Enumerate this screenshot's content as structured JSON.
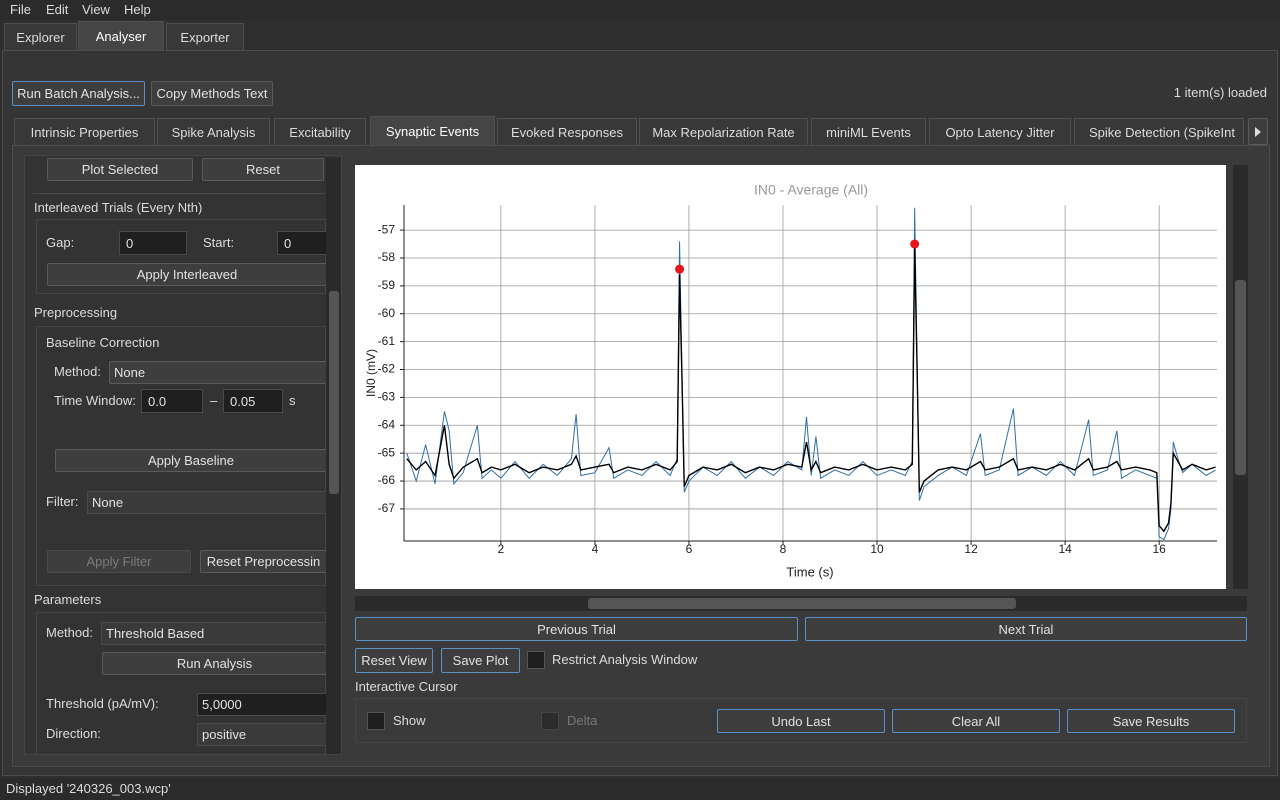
{
  "menu": [
    "File",
    "Edit",
    "View",
    "Help"
  ],
  "main_tabs": [
    "Explorer",
    "Analyser",
    "Exporter"
  ],
  "toolbar": {
    "run_batch": "Run Batch Analysis...",
    "copy_methods": "Copy Methods Text",
    "items_loaded": "1 item(s) loaded"
  },
  "analysis_tabs": [
    "Intrinsic Properties",
    "Spike Analysis",
    "Excitability",
    "Synaptic Events",
    "Evoked Responses",
    "Max Repolarization Rate",
    "miniML Events",
    "Opto Latency Jitter",
    "Spike Detection (SpikeInt"
  ],
  "left_panel": {
    "plot_selected": "Plot Selected",
    "reset": "Reset",
    "interleaved_title": "Interleaved Trials (Every Nth)",
    "gap_label": "Gap:",
    "gap_value": "0",
    "start_label": "Start:",
    "start_value": "0",
    "apply_interleaved": "Apply Interleaved",
    "preprocessing_title": "Preprocessing",
    "baseline_title": "Baseline Correction",
    "method_label": "Method:",
    "method_value": "None",
    "time_window_label": "Time Window:",
    "tw_start": "0.0",
    "tw_dash": "–",
    "tw_end": "0.05",
    "tw_unit": "s",
    "apply_baseline": "Apply Baseline",
    "filter_label": "Filter:",
    "filter_value": "None",
    "apply_filter": "Apply Filter",
    "reset_preprocessing": "Reset Preprocessin",
    "parameters_title": "Parameters",
    "param_method_label": "Method:",
    "param_method_value": "Threshold Based",
    "run_analysis": "Run Analysis",
    "threshold_label": "Threshold (pA/mV):",
    "threshold_value": "5,0000",
    "direction_label": "Direction:",
    "direction_value": "positive"
  },
  "chart_data": {
    "type": "line",
    "title": "IN0 - Average (All)",
    "x_label": "Time (s)",
    "y_label": "IN0 (mV)",
    "xlim": [
      -0.06,
      17.23
    ],
    "ylim": [
      -68.15,
      -56.1
    ],
    "xticks": [
      2,
      4,
      6,
      8,
      10,
      12,
      14,
      16
    ],
    "yticks": [
      -67,
      -66,
      -65,
      -64,
      -63,
      -62,
      -61,
      -60,
      -59,
      -58,
      -57
    ],
    "grid": true,
    "x": [
      0.0,
      0.2,
      0.4,
      0.6,
      0.8,
      0.9,
      1.0,
      1.2,
      1.5,
      1.6,
      1.8,
      2.0,
      2.3,
      2.6,
      2.9,
      3.2,
      3.5,
      3.6,
      3.7,
      4.0,
      4.3,
      4.4,
      4.7,
      5.0,
      5.3,
      5.6,
      5.75,
      5.8,
      5.85,
      5.9,
      6.0,
      6.3,
      6.6,
      6.9,
      7.2,
      7.5,
      7.8,
      8.1,
      8.4,
      8.5,
      8.6,
      8.7,
      8.8,
      9.1,
      9.4,
      9.7,
      10.0,
      10.3,
      10.6,
      10.75,
      10.8,
      10.85,
      10.9,
      11.0,
      11.3,
      11.6,
      11.9,
      12.2,
      12.3,
      12.6,
      12.9,
      13.0,
      13.3,
      13.6,
      13.9,
      14.2,
      14.5,
      14.6,
      14.9,
      15.1,
      15.2,
      15.5,
      15.8,
      15.95,
      16.0,
      16.1,
      16.2,
      16.25,
      16.3,
      16.4,
      16.5,
      16.7,
      17.0,
      17.2
    ],
    "series": [
      {
        "color": "#2f6fa6",
        "values": [
          -65.0,
          -66.0,
          -64.7,
          -66.1,
          -63.5,
          -64.2,
          -66.1,
          -65.7,
          -64.0,
          -65.9,
          -65.6,
          -65.9,
          -65.3,
          -65.9,
          -65.4,
          -65.8,
          -65.2,
          -63.6,
          -65.8,
          -65.7,
          -64.8,
          -65.9,
          -65.6,
          -65.8,
          -65.3,
          -65.8,
          -65.2,
          -57.4,
          -62.0,
          -66.4,
          -66.0,
          -65.5,
          -65.8,
          -65.3,
          -65.9,
          -65.5,
          -65.8,
          -65.3,
          -65.6,
          -63.7,
          -65.8,
          -64.4,
          -65.9,
          -65.6,
          -65.8,
          -65.3,
          -65.8,
          -65.6,
          -65.8,
          -65.3,
          -56.2,
          -61.5,
          -66.7,
          -66.2,
          -65.8,
          -65.5,
          -65.8,
          -64.3,
          -65.8,
          -65.6,
          -63.4,
          -65.8,
          -65.5,
          -65.8,
          -65.3,
          -65.8,
          -63.8,
          -65.8,
          -65.6,
          -64.2,
          -65.9,
          -65.6,
          -65.8,
          -65.9,
          -68.0,
          -68.1,
          -67.7,
          -67.0,
          -64.6,
          -65.2,
          -65.7,
          -65.4,
          -65.8,
          -65.6
        ]
      },
      {
        "color": "#000000",
        "values": [
          -65.2,
          -65.6,
          -65.3,
          -65.8,
          -64.0,
          -65.4,
          -65.9,
          -65.5,
          -65.2,
          -65.7,
          -65.5,
          -65.6,
          -65.4,
          -65.7,
          -65.5,
          -65.6,
          -65.4,
          -65.1,
          -65.6,
          -65.5,
          -65.4,
          -65.7,
          -65.5,
          -65.6,
          -65.4,
          -65.6,
          -65.3,
          -58.6,
          -62.2,
          -66.2,
          -65.8,
          -65.5,
          -65.6,
          -65.4,
          -65.7,
          -65.5,
          -65.6,
          -65.4,
          -65.5,
          -64.6,
          -65.6,
          -65.3,
          -65.7,
          -65.5,
          -65.6,
          -65.4,
          -65.6,
          -65.5,
          -65.6,
          -65.4,
          -57.6,
          -61.8,
          -66.4,
          -66.0,
          -65.6,
          -65.5,
          -65.6,
          -65.3,
          -65.6,
          -65.5,
          -65.2,
          -65.6,
          -65.5,
          -65.6,
          -65.4,
          -65.6,
          -65.2,
          -65.6,
          -65.5,
          -65.3,
          -65.6,
          -65.5,
          -65.6,
          -65.7,
          -67.6,
          -67.8,
          -67.5,
          -66.8,
          -65.0,
          -65.3,
          -65.6,
          -65.4,
          -65.6,
          -65.5
        ]
      }
    ],
    "events": {
      "color": "#e8141c",
      "x": [
        5.8,
        10.8
      ],
      "y": [
        -58.4,
        -57.5
      ]
    }
  },
  "controls": {
    "previous_trial": "Previous Trial",
    "next_trial": "Next Trial",
    "reset_view": "Reset View",
    "save_plot": "Save Plot",
    "restrict": "Restrict Analysis Window",
    "cursor_title": "Interactive Cursor",
    "show": "Show",
    "delta": "Delta",
    "undo": "Undo Last",
    "clear": "Clear All",
    "save_results": "Save Results"
  },
  "status_bar": "Displayed '240326_003.wcp'"
}
